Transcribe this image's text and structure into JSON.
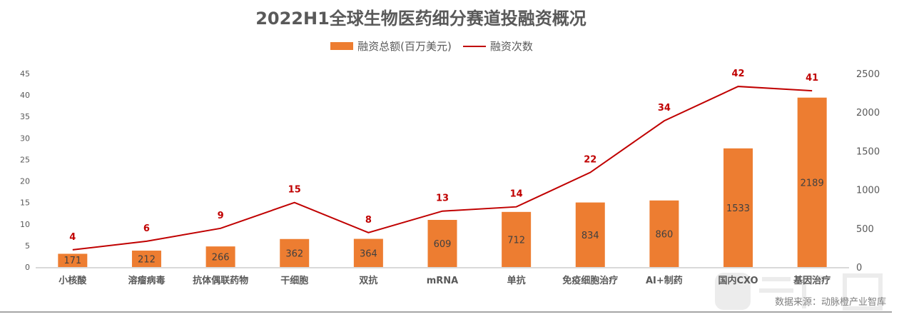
{
  "chart_data": {
    "type": "bar+line",
    "title": "2022H1全球生物医药细分赛道投融资概况",
    "categories": [
      "小核酸",
      "溶瘤病毒",
      "抗体偶联药物",
      "干细胞",
      "双抗",
      "mRNA",
      "单抗",
      "免疫细胞治疗",
      "AI+制药",
      "国内CXO",
      "基因治疗"
    ],
    "series": [
      {
        "name": "融资总额(百万美元)",
        "type": "bar",
        "axis": "right",
        "color": "#ED7D31",
        "values": [
          171,
          212,
          266,
          362,
          364,
          609,
          712,
          834,
          860,
          1533,
          2189
        ]
      },
      {
        "name": "融资次数",
        "type": "line",
        "axis": "left",
        "color": "#C00000",
        "values": [
          4,
          6,
          9,
          15,
          8,
          13,
          14,
          22,
          34,
          42,
          41
        ]
      }
    ],
    "left_axis": {
      "ylim": [
        0,
        45
      ],
      "ticks": [
        0,
        5,
        10,
        15,
        20,
        25,
        30,
        35,
        40,
        45
      ]
    },
    "right_axis": {
      "ylim": [
        0,
        2500
      ],
      "ticks": [
        0,
        500,
        1000,
        1500,
        2000,
        2500
      ]
    },
    "grid": false,
    "legend_position": "top"
  },
  "source": "数据来源：动脉橙产业智库",
  "watermark": "动脉网"
}
